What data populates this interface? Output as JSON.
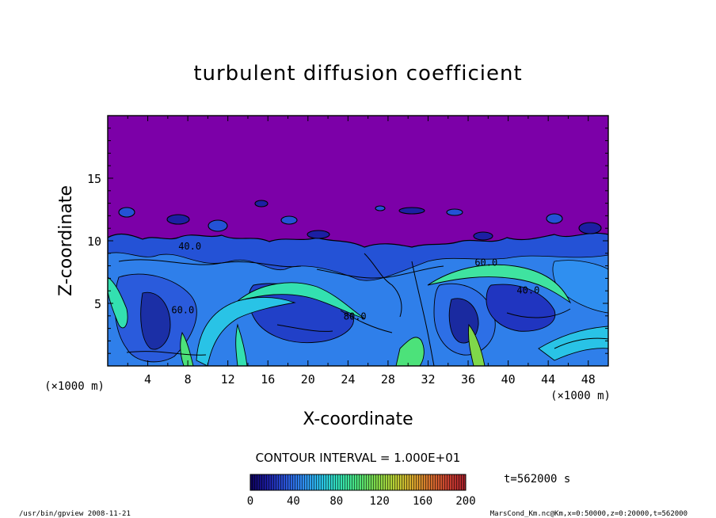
{
  "chart_data": {
    "type": "heatmap",
    "subtype": "filled-contour",
    "title": "turbulent diffusion coefficient",
    "xlabel": "X-coordinate",
    "ylabel": "Z-coordinate",
    "x_unit_left": "(×1000 m)",
    "x_unit_right": "(×1000 m)",
    "xlim": [
      0,
      50
    ],
    "ylim": [
      0,
      20
    ],
    "xticks": [
      4,
      8,
      12,
      16,
      20,
      24,
      28,
      32,
      36,
      40,
      44,
      48
    ],
    "yticks": [
      5,
      10,
      15
    ],
    "contour_interval_label": "CONTOUR INTERVAL = 1.000E+01",
    "contour_labels": [
      {
        "x": 7.5,
        "z": 4.2,
        "text": "60.0"
      },
      {
        "x": 24.7,
        "z": 3.7,
        "text": "80.0"
      },
      {
        "x": 37.8,
        "z": 8.0,
        "text": "60.0"
      },
      {
        "x": 42.0,
        "z": 5.8,
        "text": "40.0"
      },
      {
        "x": 8.2,
        "z": 9.3,
        "text": "40.0"
      }
    ],
    "colorbar": {
      "min": 0,
      "max": 200,
      "ticks": [
        "0",
        "40",
        "80",
        "120",
        "160",
        "200"
      ],
      "colors": [
        "#0d0059",
        "#1c1fa3",
        "#2a55d8",
        "#2f8ff0",
        "#29c3e6",
        "#33e0b0",
        "#4ce27a",
        "#7fd84a",
        "#b6d035",
        "#d6a92c",
        "#d4702d",
        "#c8402f",
        "#a51f2a"
      ]
    },
    "background_color": "#7c00a8",
    "time_label": "t=562000 s"
  },
  "footer": {
    "left": "/usr/bin/gpview    2008-11-21",
    "right": "MarsCond_Km.nc@Km,x=0:50000,z=0:20000,t=562000"
  }
}
